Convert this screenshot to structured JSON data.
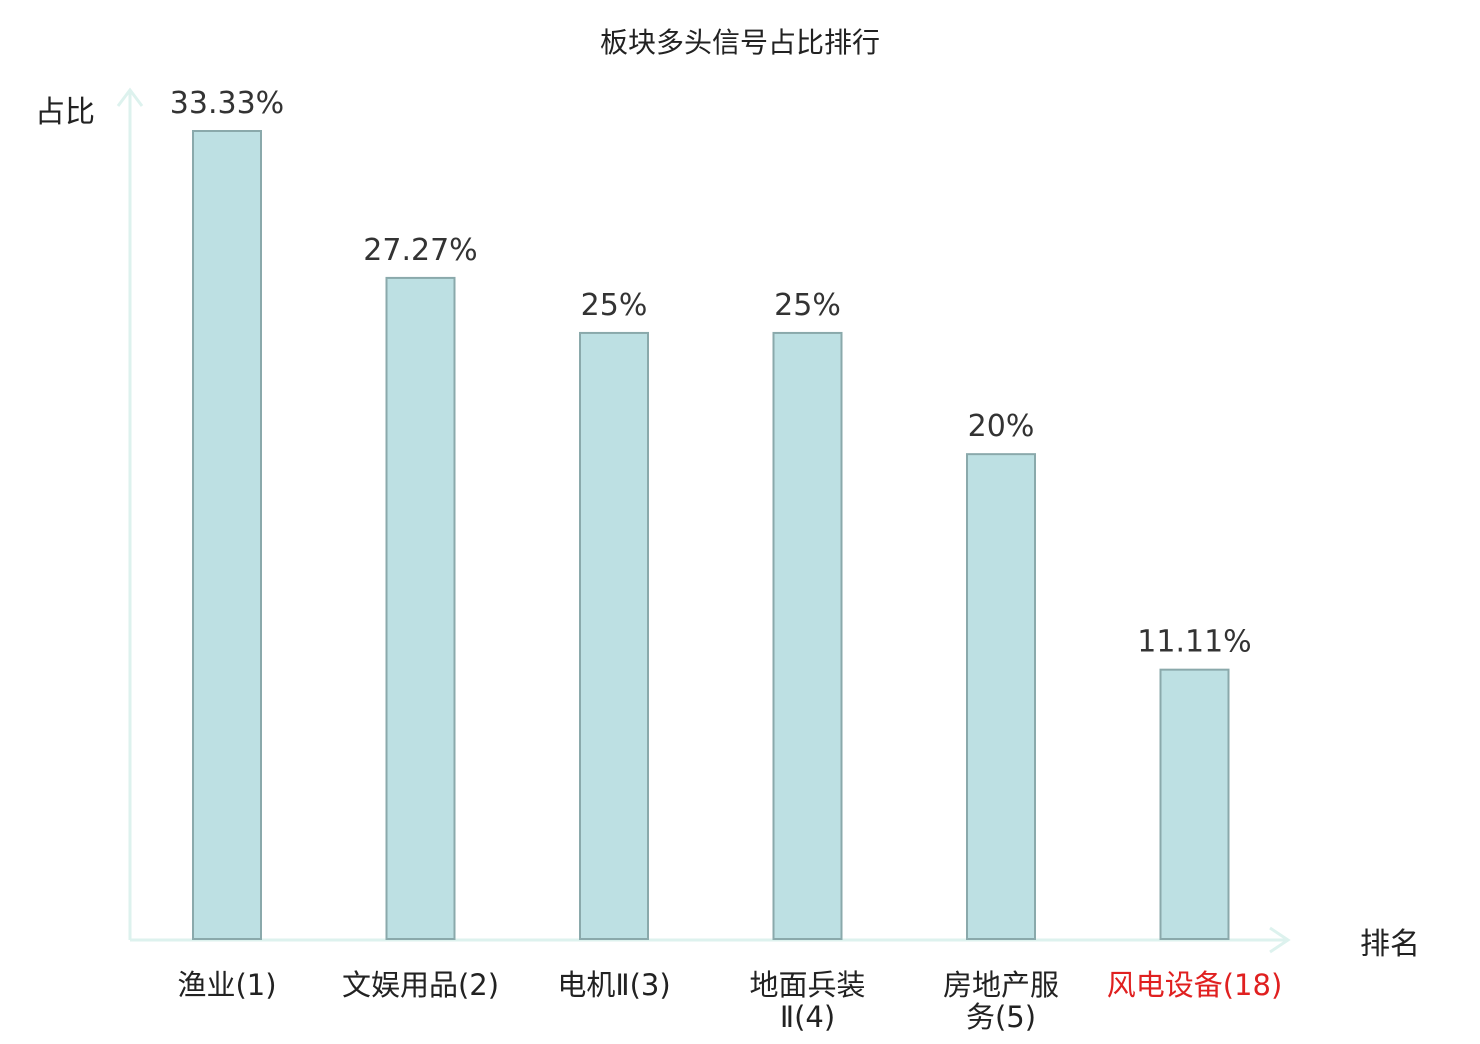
{
  "chart_data": {
    "type": "bar",
    "title": "板块多头信号占比排行",
    "ylabel": "占比",
    "xlabel": "排名",
    "categories": [
      {
        "name": "渔业",
        "rank": "(1)",
        "highlight": false
      },
      {
        "name": "文娱用品",
        "rank": "(2)",
        "highlight": false
      },
      {
        "name": "电机Ⅱ",
        "rank": "(3)",
        "highlight": false
      },
      {
        "name": "地面兵装",
        "name2": "Ⅱ(4)",
        "rank": "",
        "highlight": false
      },
      {
        "name": "房地产服",
        "name2": "务(5)",
        "rank": "",
        "highlight": false
      },
      {
        "name": "风电设备",
        "rank": "(18)",
        "highlight": true
      }
    ],
    "values": [
      33.33,
      27.27,
      25,
      25,
      20,
      11.11
    ],
    "value_labels": [
      "33.33%",
      "27.27%",
      "25%",
      "25%",
      "20%",
      "11.11%"
    ],
    "ylim": [
      0,
      35
    ],
    "grid": false,
    "colors": {
      "bar_fill": "#bde0e3",
      "bar_stroke": "#8aa9ab",
      "axis": "#ddf2ee",
      "text": "#333333",
      "label": "#222222",
      "highlight": "#e02020"
    }
  }
}
